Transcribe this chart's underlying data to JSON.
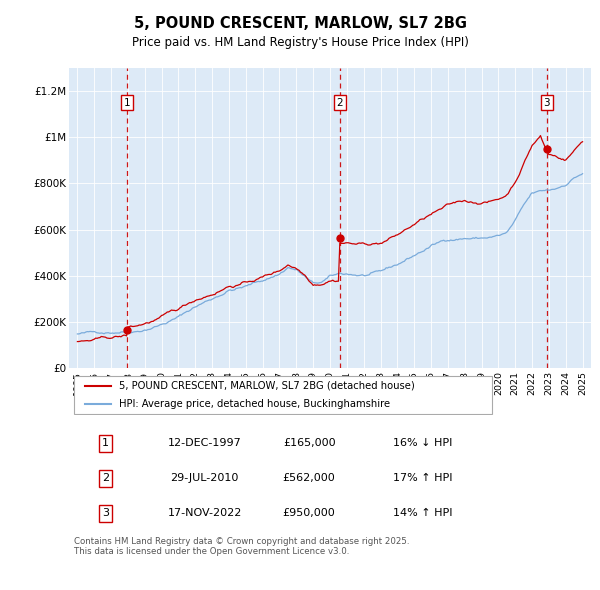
{
  "title": "5, POUND CRESCENT, MARLOW, SL7 2BG",
  "subtitle": "Price paid vs. HM Land Registry's House Price Index (HPI)",
  "ylim": [
    0,
    1300000
  ],
  "xlim_start": 1994.5,
  "xlim_end": 2025.5,
  "yticks": [
    0,
    200000,
    400000,
    600000,
    800000,
    1000000,
    1200000
  ],
  "ytick_labels": [
    "£0",
    "£200K",
    "£400K",
    "£600K",
    "£800K",
    "£1M",
    "£1.2M"
  ],
  "xtick_years": [
    1995,
    1996,
    1997,
    1998,
    1999,
    2000,
    2001,
    2002,
    2003,
    2004,
    2005,
    2006,
    2007,
    2008,
    2009,
    2010,
    2011,
    2012,
    2013,
    2014,
    2015,
    2016,
    2017,
    2018,
    2019,
    2020,
    2021,
    2022,
    2023,
    2024,
    2025
  ],
  "sale_dates": [
    1997.95,
    2010.57,
    2022.88
  ],
  "sale_prices": [
    165000,
    562000,
    950000
  ],
  "sale_labels": [
    "1",
    "2",
    "3"
  ],
  "property_line_color": "#cc0000",
  "hpi_line_color": "#7aabdb",
  "plot_bg_color": "#ddeaf7",
  "legend_label_property": "5, POUND CRESCENT, MARLOW, SL7 2BG (detached house)",
  "legend_label_hpi": "HPI: Average price, detached house, Buckinghamshire",
  "table_entries": [
    {
      "num": "1",
      "date": "12-DEC-1997",
      "price": "£165,000",
      "change": "16% ↓ HPI"
    },
    {
      "num": "2",
      "date": "29-JUL-2010",
      "price": "£562,000",
      "change": "17% ↑ HPI"
    },
    {
      "num": "3",
      "date": "17-NOV-2022",
      "price": "£950,000",
      "change": "14% ↑ HPI"
    }
  ],
  "footer": "Contains HM Land Registry data © Crown copyright and database right 2025.\nThis data is licensed under the Open Government Licence v3.0."
}
